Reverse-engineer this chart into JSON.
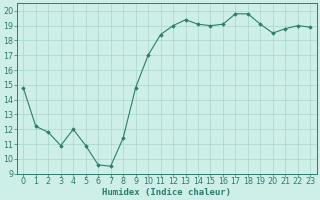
{
  "x": [
    0,
    1,
    2,
    3,
    4,
    5,
    6,
    7,
    8,
    9,
    10,
    11,
    12,
    13,
    14,
    15,
    16,
    17,
    18,
    19,
    20,
    21,
    22,
    23
  ],
  "y": [
    14.8,
    12.2,
    11.8,
    10.9,
    12.0,
    10.9,
    9.6,
    9.5,
    11.4,
    14.8,
    17.0,
    18.4,
    19.0,
    19.4,
    19.1,
    19.0,
    19.1,
    19.8,
    19.8,
    19.1,
    18.5,
    18.8,
    19.0,
    18.9
  ],
  "xlabel": "Humidex (Indice chaleur)",
  "xlim": [
    -0.5,
    23.5
  ],
  "ylim": [
    9,
    20.5
  ],
  "yticks": [
    9,
    10,
    11,
    12,
    13,
    14,
    15,
    16,
    17,
    18,
    19,
    20
  ],
  "xticks": [
    0,
    1,
    2,
    3,
    4,
    5,
    6,
    7,
    8,
    9,
    10,
    11,
    12,
    13,
    14,
    15,
    16,
    17,
    18,
    19,
    20,
    21,
    22,
    23
  ],
  "line_color": "#2d7d6e",
  "marker": "D",
  "marker_size": 1.8,
  "bg_color": "#ceeee8",
  "grid_color": "#aad4cc",
  "axis_color": "#2d7d6e",
  "tick_color": "#2d7d6e",
  "label_fontsize": 6.5,
  "tick_fontsize": 5.8
}
